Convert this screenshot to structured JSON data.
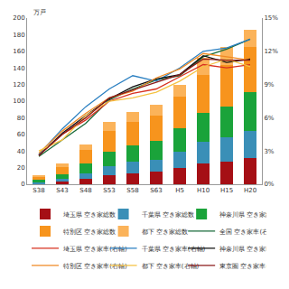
{
  "chart_data": {
    "type": "bar",
    "stacked": true,
    "grid": false,
    "legend": "bottom",
    "ylabel": "万戸",
    "categories": [
      "S38",
      "S43",
      "S48",
      "S53",
      "S58",
      "S63",
      "H5",
      "H10",
      "H15",
      "H20"
    ],
    "ylim": [
      0,
      200
    ],
    "yticks": [
      0,
      20,
      40,
      60,
      80,
      100,
      120,
      140,
      160,
      180,
      200
    ],
    "y2lim": [
      0,
      15
    ],
    "y2ticks": [
      {
        "value": 0,
        "label": "0%"
      },
      {
        "value": 3,
        "label": "3%"
      },
      {
        "value": 6,
        "label": "6%"
      },
      {
        "value": 9,
        "label": "9%"
      },
      {
        "value": 12,
        "label": "12%"
      },
      {
        "value": 15,
        "label": "15%"
      }
    ],
    "series": [
      {
        "name": "埼玉県 空き家総数",
        "type": "bar",
        "color": "#a50f15",
        "values": [
          1,
          3,
          7,
          11,
          13,
          15,
          20,
          25,
          27,
          32
        ]
      },
      {
        "name": "千葉県 空き家総数",
        "type": "bar",
        "color": "#3a8fb7",
        "values": [
          1.5,
          3,
          6,
          11,
          14,
          14,
          19,
          26,
          29,
          32
        ]
      },
      {
        "name": "神奈川県 空き家総数",
        "type": "bar",
        "color": "#1aa33a",
        "values": [
          3,
          6,
          12,
          17,
          20,
          23,
          28,
          35,
          38,
          47
        ]
      },
      {
        "name": "特別区 空き家総数",
        "type": "bar",
        "color": "#f7941d",
        "values": [
          4,
          9,
          16,
          25,
          28,
          31,
          38,
          46,
          50,
          54
        ]
      },
      {
        "name": "都下 空き家総数",
        "type": "bar",
        "color": "#fbb35a",
        "values": [
          1.5,
          4,
          7,
          11,
          12,
          13,
          15,
          20,
          21,
          21
        ]
      },
      {
        "name": "全国 空き家率(右軸)",
        "type": "line",
        "axis": "y2",
        "color": "#1a6b3a",
        "values": [
          2.5,
          4.0,
          5.5,
          7.6,
          8.6,
          9.4,
          9.8,
          11.5,
          12.2,
          13.1
        ]
      },
      {
        "name": "埼玉県 空き家率(右軸)",
        "type": "line",
        "axis": "y2",
        "color": "#d7301f",
        "values": [
          2.6,
          4.5,
          5.8,
          7.5,
          8.2,
          8.6,
          9.7,
          10.8,
          10.5,
          10.8
        ]
      },
      {
        "name": "千葉県 空き家率(右軸)",
        "type": "line",
        "axis": "y2",
        "color": "#2a7fc1",
        "values": [
          2.7,
          5.0,
          7.0,
          8.6,
          9.8,
          9.3,
          10.5,
          12.0,
          12.3,
          13.1
        ]
      },
      {
        "name": "神奈川県 空き家率(右軸)",
        "type": "line",
        "axis": "y2",
        "color": "#111111",
        "values": [
          2.6,
          4.6,
          6.2,
          7.7,
          8.8,
          9.5,
          9.9,
          11.6,
          11.0,
          11.3
        ]
      },
      {
        "name": "特別区 空き家率(右軸)",
        "type": "line",
        "axis": "y2",
        "color": "#f08a24",
        "values": [
          2.8,
          4.8,
          6.4,
          7.8,
          8.4,
          9.6,
          10.4,
          11.8,
          11.5,
          11.2
        ]
      },
      {
        "name": "都下 空き家率(右軸)",
        "type": "line",
        "axis": "y2",
        "color": "#f5c242",
        "values": [
          3.0,
          4.0,
          6.2,
          7.5,
          7.8,
          8.3,
          9.3,
          10.6,
          11.3,
          10.6
        ]
      },
      {
        "name": "東京圏 空き家率(右軸)",
        "type": "line",
        "axis": "y2",
        "color": "#8b1a1a",
        "values": [
          2.6,
          4.5,
          6.0,
          7.8,
          8.5,
          9.2,
          9.9,
          11.3,
          11.2,
          11.2
        ]
      }
    ]
  }
}
